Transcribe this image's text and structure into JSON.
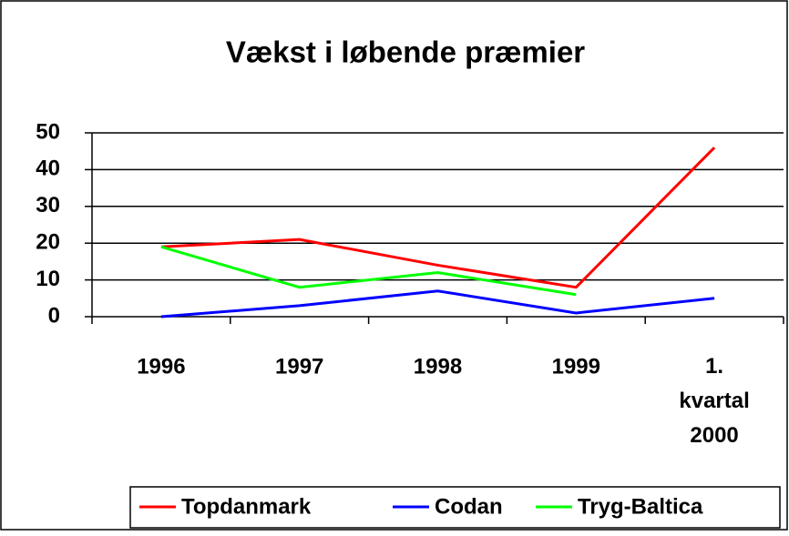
{
  "chart_data": {
    "type": "line",
    "title": "Vækst i løbende præmier",
    "categories": [
      "1996",
      "1997",
      "1998",
      "1999",
      "1. kvartal 2000"
    ],
    "series": [
      {
        "name": "Topdanmark",
        "color": "#ff0000",
        "values": [
          19,
          21,
          14,
          8,
          46
        ]
      },
      {
        "name": "Codan",
        "color": "#0000ff",
        "values": [
          0,
          3,
          7,
          1,
          5
        ]
      },
      {
        "name": "Tryg-Baltica",
        "color": "#00ff00",
        "values": [
          19,
          8,
          12,
          6,
          null
        ]
      }
    ],
    "ylim": [
      0,
      50
    ],
    "yticks": [
      0,
      10,
      20,
      30,
      40,
      50
    ],
    "grid": true,
    "legend": "bottom"
  }
}
